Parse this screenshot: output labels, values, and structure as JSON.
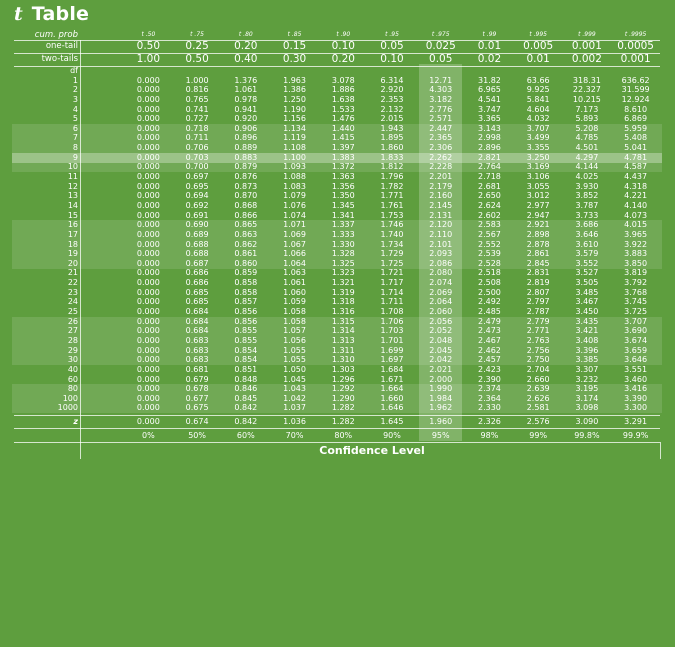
{
  "title_italic": "t",
  "title_rest": " Table",
  "header": {
    "cum_prob_label": "cum. prob",
    "one_tail_label": "one-tail",
    "two_tails_label": "two-tails",
    "df_label": "df",
    "t_subscripts": [
      "t .50",
      "t .75",
      "t .80",
      "t .85",
      "t .90",
      "t .95",
      "t .975",
      "t .99",
      "t .995",
      "t .999",
      "t .9995"
    ],
    "one_tail": [
      "0.50",
      "0.25",
      "0.20",
      "0.15",
      "0.10",
      "0.05",
      "0.025",
      "0.01",
      "0.005",
      "0.001",
      "0.0005"
    ],
    "two_tails": [
      "1.00",
      "0.50",
      "0.40",
      "0.30",
      "0.20",
      "0.10",
      "0.05",
      "0.02",
      "0.01",
      "0.002",
      "0.001"
    ]
  },
  "rows": [
    {
      "df": "1",
      "v": [
        "0.000",
        "1.000",
        "1.376",
        "1.963",
        "3.078",
        "6.314",
        "12.71",
        "31.82",
        "63.66",
        "318.31",
        "636.62"
      ]
    },
    {
      "df": "2",
      "v": [
        "0.000",
        "0.816",
        "1.061",
        "1.386",
        "1.886",
        "2.920",
        "4.303",
        "6.965",
        "9.925",
        "22.327",
        "31.599"
      ]
    },
    {
      "df": "3",
      "v": [
        "0.000",
        "0.765",
        "0.978",
        "1.250",
        "1.638",
        "2.353",
        "3.182",
        "4.541",
        "5.841",
        "10.215",
        "12.924"
      ]
    },
    {
      "df": "4",
      "v": [
        "0.000",
        "0.741",
        "0.941",
        "1.190",
        "1.533",
        "2.132",
        "2.776",
        "3.747",
        "4.604",
        "7.173",
        "8.610"
      ]
    },
    {
      "df": "5",
      "v": [
        "0.000",
        "0.727",
        "0.920",
        "1.156",
        "1.476",
        "2.015",
        "2.571",
        "3.365",
        "4.032",
        "5.893",
        "6.869"
      ]
    },
    {
      "df": "6",
      "v": [
        "0.000",
        "0.718",
        "0.906",
        "1.134",
        "1.440",
        "1.943",
        "2.447",
        "3.143",
        "3.707",
        "5.208",
        "5.959"
      ]
    },
    {
      "df": "7",
      "v": [
        "0.000",
        "0.711",
        "0.896",
        "1.119",
        "1.415",
        "1.895",
        "2.365",
        "2.998",
        "3.499",
        "4.785",
        "5.408"
      ]
    },
    {
      "df": "8",
      "v": [
        "0.000",
        "0.706",
        "0.889",
        "1.108",
        "1.397",
        "1.860",
        "2.306",
        "2.896",
        "3.355",
        "4.501",
        "5.041"
      ]
    },
    {
      "df": "9",
      "v": [
        "0.000",
        "0.703",
        "0.883",
        "1.100",
        "1.383",
        "1.833",
        "2.262",
        "2.821",
        "3.250",
        "4.297",
        "4.781"
      ]
    },
    {
      "df": "10",
      "v": [
        "0.000",
        "0.700",
        "0.879",
        "1.093",
        "1.372",
        "1.812",
        "2.228",
        "2.764",
        "3.169",
        "4.144",
        "4.587"
      ]
    },
    {
      "df": "11",
      "v": [
        "0.000",
        "0.697",
        "0.876",
        "1.088",
        "1.363",
        "1.796",
        "2.201",
        "2.718",
        "3.106",
        "4.025",
        "4.437"
      ]
    },
    {
      "df": "12",
      "v": [
        "0.000",
        "0.695",
        "0.873",
        "1.083",
        "1.356",
        "1.782",
        "2.179",
        "2.681",
        "3.055",
        "3.930",
        "4.318"
      ]
    },
    {
      "df": "13",
      "v": [
        "0.000",
        "0.694",
        "0.870",
        "1.079",
        "1.350",
        "1.771",
        "2.160",
        "2.650",
        "3.012",
        "3.852",
        "4.221"
      ]
    },
    {
      "df": "14",
      "v": [
        "0.000",
        "0.692",
        "0.868",
        "1.076",
        "1.345",
        "1.761",
        "2.145",
        "2.624",
        "2.977",
        "3.787",
        "4.140"
      ]
    },
    {
      "df": "15",
      "v": [
        "0.000",
        "0.691",
        "0.866",
        "1.074",
        "1.341",
        "1.753",
        "2.131",
        "2.602",
        "2.947",
        "3.733",
        "4.073"
      ]
    },
    {
      "df": "16",
      "v": [
        "0.000",
        "0.690",
        "0.865",
        "1.071",
        "1.337",
        "1.746",
        "2.120",
        "2.583",
        "2.921",
        "3.686",
        "4.015"
      ]
    },
    {
      "df": "17",
      "v": [
        "0.000",
        "0.689",
        "0.863",
        "1.069",
        "1.333",
        "1.740",
        "2.110",
        "2.567",
        "2.898",
        "3.646",
        "3.965"
      ]
    },
    {
      "df": "18",
      "v": [
        "0.000",
        "0.688",
        "0.862",
        "1.067",
        "1.330",
        "1.734",
        "2.101",
        "2.552",
        "2.878",
        "3.610",
        "3.922"
      ]
    },
    {
      "df": "19",
      "v": [
        "0.000",
        "0.688",
        "0.861",
        "1.066",
        "1.328",
        "1.729",
        "2.093",
        "2.539",
        "2.861",
        "3.579",
        "3.883"
      ]
    },
    {
      "df": "20",
      "v": [
        "0.000",
        "0.687",
        "0.860",
        "1.064",
        "1.325",
        "1.725",
        "2.086",
        "2.528",
        "2.845",
        "3.552",
        "3.850"
      ]
    },
    {
      "df": "21",
      "v": [
        "0.000",
        "0.686",
        "0.859",
        "1.063",
        "1.323",
        "1.721",
        "2.080",
        "2.518",
        "2.831",
        "3.527",
        "3.819"
      ]
    },
    {
      "df": "22",
      "v": [
        "0.000",
        "0.686",
        "0.858",
        "1.061",
        "1.321",
        "1.717",
        "2.074",
        "2.508",
        "2.819",
        "3.505",
        "3.792"
      ]
    },
    {
      "df": "23",
      "v": [
        "0.000",
        "0.685",
        "0.858",
        "1.060",
        "1.319",
        "1.714",
        "2.069",
        "2.500",
        "2.807",
        "3.485",
        "3.768"
      ]
    },
    {
      "df": "24",
      "v": [
        "0.000",
        "0.685",
        "0.857",
        "1.059",
        "1.318",
        "1.711",
        "2.064",
        "2.492",
        "2.797",
        "3.467",
        "3.745"
      ]
    },
    {
      "df": "25",
      "v": [
        "0.000",
        "0.684",
        "0.856",
        "1.058",
        "1.316",
        "1.708",
        "2.060",
        "2.485",
        "2.787",
        "3.450",
        "3.725"
      ]
    },
    {
      "df": "26",
      "v": [
        "0.000",
        "0.684",
        "0.856",
        "1.058",
        "1.315",
        "1.706",
        "2.056",
        "2.479",
        "2.779",
        "3.435",
        "3.707"
      ]
    },
    {
      "df": "27",
      "v": [
        "0.000",
        "0.684",
        "0.855",
        "1.057",
        "1.314",
        "1.703",
        "2.052",
        "2.473",
        "2.771",
        "3.421",
        "3.690"
      ]
    },
    {
      "df": "28",
      "v": [
        "0.000",
        "0.683",
        "0.855",
        "1.056",
        "1.313",
        "1.701",
        "2.048",
        "2.467",
        "2.763",
        "3.408",
        "3.674"
      ]
    },
    {
      "df": "29",
      "v": [
        "0.000",
        "0.683",
        "0.854",
        "1.055",
        "1.311",
        "1.699",
        "2.045",
        "2.462",
        "2.756",
        "3.396",
        "3.659"
      ]
    },
    {
      "df": "30",
      "v": [
        "0.000",
        "0.683",
        "0.854",
        "1.055",
        "1.310",
        "1.697",
        "2.042",
        "2.457",
        "2.750",
        "3.385",
        "3.646"
      ]
    },
    {
      "df": "40",
      "v": [
        "0.000",
        "0.681",
        "0.851",
        "1.050",
        "1.303",
        "1.684",
        "2.021",
        "2.423",
        "2.704",
        "3.307",
        "3.551"
      ]
    },
    {
      "df": "60",
      "v": [
        "0.000",
        "0.679",
        "0.848",
        "1.045",
        "1.296",
        "1.671",
        "2.000",
        "2.390",
        "2.660",
        "3.232",
        "3.460"
      ]
    },
    {
      "df": "80",
      "v": [
        "0.000",
        "0.678",
        "0.846",
        "1.043",
        "1.292",
        "1.664",
        "1.990",
        "2.374",
        "2.639",
        "3.195",
        "3.416"
      ]
    },
    {
      "df": "100",
      "v": [
        "0.000",
        "0.677",
        "0.845",
        "1.042",
        "1.290",
        "1.660",
        "1.984",
        "2.364",
        "2.626",
        "3.174",
        "3.390"
      ]
    },
    {
      "df": "1000",
      "v": [
        "0.000",
        "0.675",
        "0.842",
        "1.037",
        "1.282",
        "1.646",
        "1.962",
        "2.330",
        "2.581",
        "3.098",
        "3.300"
      ]
    }
  ],
  "z_row": {
    "label": "z",
    "v": [
      "0.000",
      "0.674",
      "0.842",
      "1.036",
      "1.282",
      "1.645",
      "1.960",
      "2.326",
      "2.576",
      "3.090",
      "3.291"
    ]
  },
  "confidence": [
    "0%",
    "50%",
    "60%",
    "70%",
    "80%",
    "90%",
    "95%",
    "98%",
    "99%",
    "99.8%",
    "99.9%"
  ],
  "footer_label": "Confidence Level",
  "highlight": {
    "row_df": "9",
    "column": "t .975"
  }
}
